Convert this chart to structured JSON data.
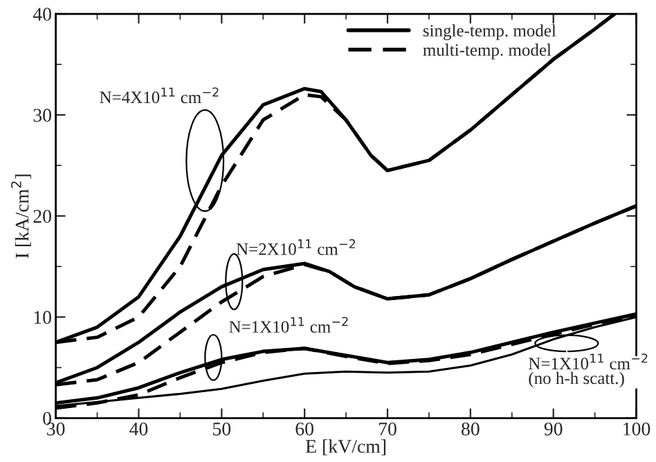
{
  "chart_data": {
    "type": "line",
    "xlabel": "E [kV/cm]",
    "ylabel": "I [kA/cm$^{2}$]",
    "xlim": [
      30,
      100
    ],
    "ylim": [
      0,
      40
    ],
    "xticks": [
      30,
      40,
      50,
      60,
      70,
      80,
      90,
      100
    ],
    "yticks": [
      0,
      10,
      20,
      30,
      40
    ],
    "grid": false,
    "legend": "top right",
    "series": [
      {
        "name": "single-temp. model",
        "color": "#000000",
        "line_style": "solid",
        "x": [
          30,
          35,
          40,
          45,
          50,
          55,
          60,
          62,
          65,
          68,
          70,
          75,
          80,
          85,
          90,
          95,
          97.4
        ],
        "values": [
          7.5,
          9,
          12,
          18,
          26,
          31,
          32.6,
          32.3,
          29.5,
          26,
          24.5,
          25.5,
          28.5,
          32,
          35.5,
          38.5,
          40
        ]
      },
      {
        "name": "multi-temp. model",
        "color": "#000000",
        "line_style": "dashed",
        "x": [
          30,
          35,
          40,
          45,
          50,
          55,
          60,
          62,
          65,
          68,
          70,
          75,
          80,
          85,
          90,
          95,
          97.4
        ],
        "values": [
          7.5,
          8,
          10,
          15,
          23,
          29.5,
          32,
          31.8,
          29.5,
          26,
          24.5,
          25.5,
          28.5,
          32,
          35.5,
          38.5,
          40
        ]
      },
      {
        "color": "#000000",
        "line_style": "solid",
        "x": [
          30,
          35,
          40,
          45,
          50,
          55,
          60,
          63,
          66,
          70,
          75,
          80,
          85,
          90,
          95,
          100
        ],
        "values": [
          3.5,
          5,
          7.5,
          10.5,
          13,
          14.7,
          15.3,
          14.5,
          13,
          11.8,
          12.2,
          13.8,
          15.7,
          17.5,
          19.3,
          21
        ]
      },
      {
        "color": "#000000",
        "line_style": "dashed",
        "x": [
          30,
          35,
          40,
          45,
          50,
          55,
          60,
          63,
          66,
          70,
          75,
          80,
          85,
          90,
          95,
          100
        ],
        "values": [
          3.3,
          3.8,
          5.5,
          8.5,
          11.5,
          14,
          15.2,
          14.5,
          13,
          11.8,
          12.2,
          13.8,
          15.7,
          17.5,
          19.3,
          21
        ]
      },
      {
        "color": "#000000",
        "line_style": "solid",
        "x": [
          30,
          35,
          40,
          45,
          50,
          55,
          60,
          65,
          70,
          75,
          80,
          85,
          90,
          95,
          100
        ],
        "values": [
          1.5,
          2,
          3,
          4.5,
          5.8,
          6.6,
          6.9,
          6.2,
          5.5,
          5.8,
          6.5,
          7.5,
          8.5,
          9.4,
          10.3
        ]
      },
      {
        "color": "#000000",
        "line_style": "dashed",
        "x": [
          30,
          35,
          40,
          45,
          50,
          55,
          60,
          65,
          70,
          75,
          80,
          85,
          90,
          95,
          100
        ],
        "values": [
          1,
          1.5,
          2.3,
          4,
          5.5,
          6.5,
          6.9,
          6.1,
          5.4,
          5.7,
          6.3,
          7.3,
          8.3,
          9.3,
          10.2
        ]
      },
      {
        "color": "#000000",
        "line_style": "solid",
        "x": [
          30,
          35,
          40,
          45,
          50,
          55,
          60,
          65,
          70,
          75,
          80,
          85,
          90,
          95,
          100
        ],
        "values": [
          1.2,
          1.6,
          2,
          2.4,
          2.9,
          3.7,
          4.4,
          4.6,
          4.5,
          4.6,
          5.2,
          6.3,
          7.8,
          9,
          10
        ]
      }
    ],
    "annotations": [
      "N=4X10$^{11}$ cm$^{−2}$",
      {
        "text": "N=2X10$^{11}$ cm$^{−2}$",
        "x": 51.5,
        "y": 13.5
      },
      {
        "text": "N=1X10$^{11}$ cm$^{−2}$",
        "x": 49,
        "y": 6
      },
      {
        "text": "N=1X10$^{11}$ cm$^{−2}$\n(no h-h scatt.)",
        "x": 91.6,
        "y": 7.4
      }
    ]
  }
}
